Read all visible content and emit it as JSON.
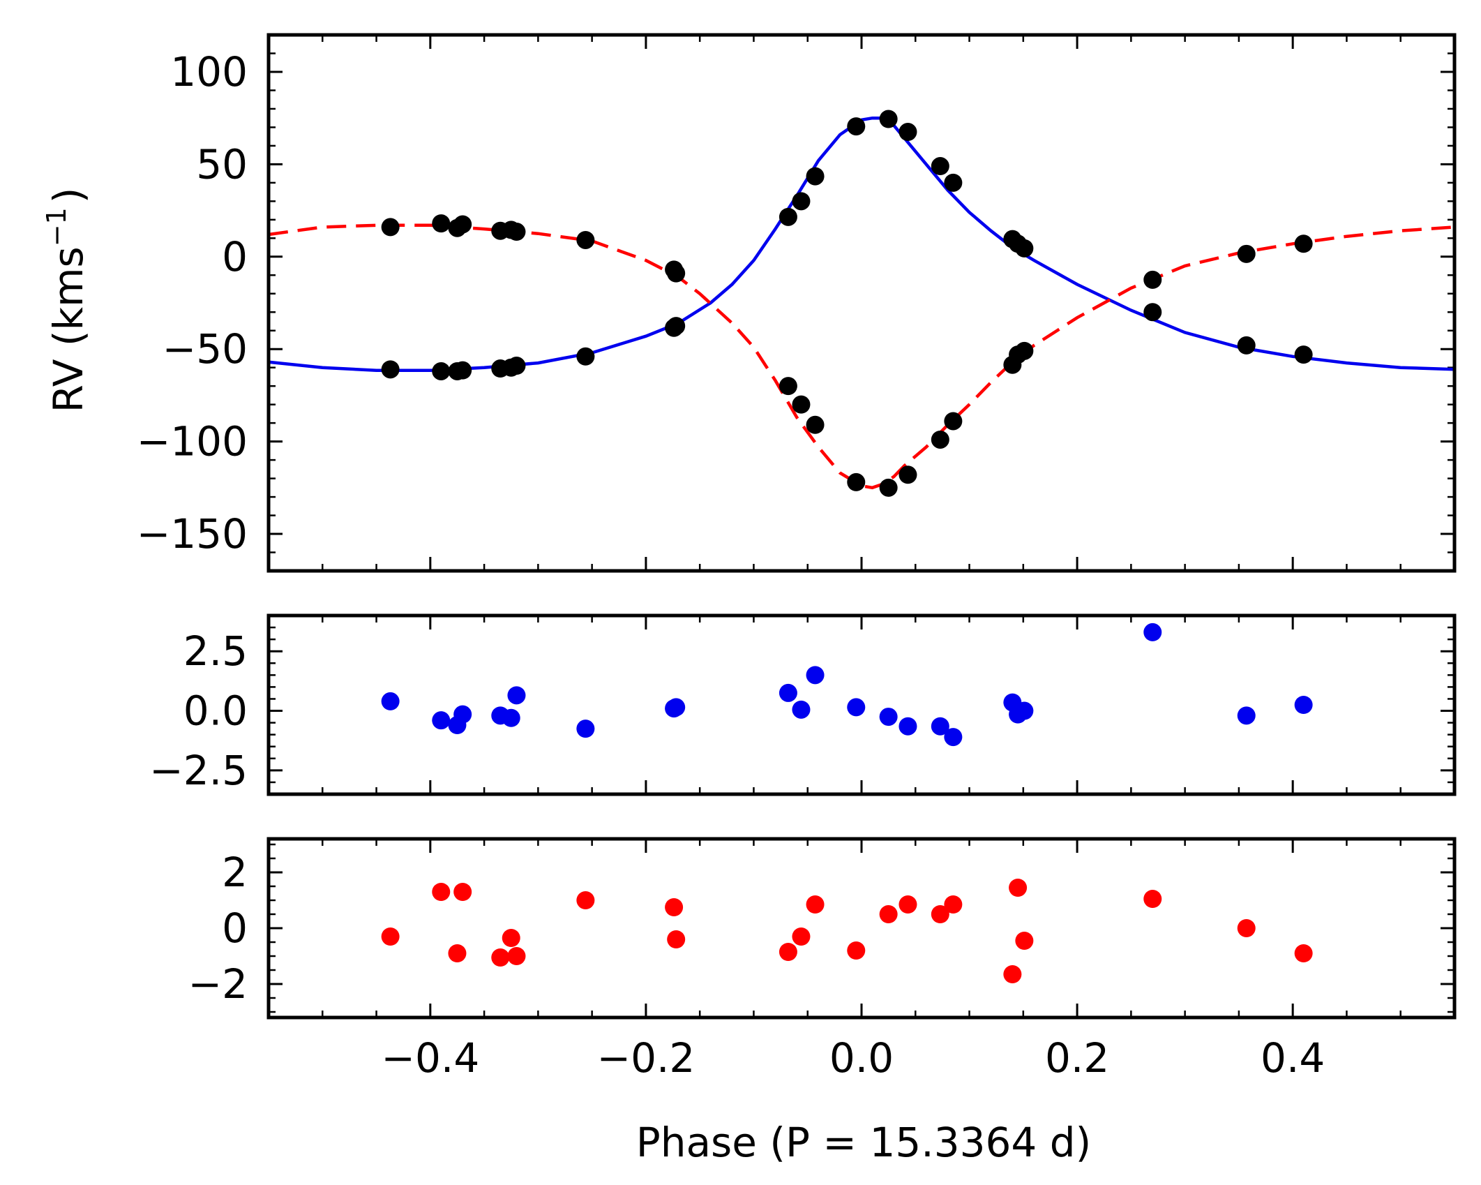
{
  "chart_data": [
    {
      "panel": "rv",
      "type": "line+scatter",
      "ylabel_main": "RV (kms",
      "ylabel_exp": "−1",
      "ylabel_close": ")",
      "xlim": [
        -0.55,
        0.55
      ],
      "ylim": [
        -170,
        120
      ],
      "yticks": [
        100,
        50,
        0,
        -50,
        -100,
        -150
      ],
      "ytick_labels": [
        "100",
        "50",
        "0",
        "−50",
        "−100",
        "−150"
      ],
      "series": [
        {
          "name": "primary model",
          "style": "solid",
          "color": "#0000ee",
          "x": [
            -0.55,
            -0.5,
            -0.45,
            -0.4,
            -0.35,
            -0.3,
            -0.25,
            -0.2,
            -0.17,
            -0.14,
            -0.12,
            -0.1,
            -0.08,
            -0.06,
            -0.04,
            -0.02,
            0.0,
            0.01,
            0.02,
            0.03,
            0.04,
            0.06,
            0.08,
            0.1,
            0.12,
            0.14,
            0.16,
            0.2,
            0.25,
            0.3,
            0.35,
            0.4,
            0.45,
            0.5,
            0.55
          ],
          "y": [
            -57,
            -60,
            -61.5,
            -61.5,
            -60,
            -57.5,
            -52,
            -43,
            -36,
            -25,
            -15,
            -2,
            15,
            33,
            52,
            66,
            74,
            75,
            75,
            71,
            64,
            50,
            36,
            24,
            14,
            5,
            -2,
            -15,
            -29,
            -41,
            -49,
            -54,
            -57.5,
            -60,
            -61
          ]
        },
        {
          "name": "secondary model",
          "style": "dashed",
          "color": "#ff0000",
          "x": [
            -0.55,
            -0.5,
            -0.45,
            -0.4,
            -0.35,
            -0.3,
            -0.25,
            -0.2,
            -0.17,
            -0.15,
            -0.12,
            -0.1,
            -0.08,
            -0.06,
            -0.04,
            -0.02,
            0.0,
            0.01,
            0.02,
            0.03,
            0.04,
            0.06,
            0.08,
            0.1,
            0.12,
            0.14,
            0.16,
            0.2,
            0.25,
            0.3,
            0.35,
            0.4,
            0.45,
            0.5,
            0.55
          ],
          "y": [
            12,
            16,
            17,
            17,
            15,
            12.5,
            8.5,
            -2,
            -11,
            -20,
            -36,
            -49,
            -67,
            -87,
            -103,
            -117,
            -124,
            -125,
            -123,
            -119,
            -113,
            -103,
            -91,
            -80,
            -68,
            -57,
            -48,
            -33,
            -17,
            -5,
            2,
            7,
            11,
            14,
            16
          ]
        },
        {
          "name": "primary RV points",
          "color": "#000000",
          "x": [
            -0.437,
            -0.39,
            -0.375,
            -0.37,
            -0.335,
            -0.325,
            -0.32,
            -0.256,
            -0.174,
            -0.172,
            -0.068,
            -0.056,
            -0.043,
            -0.005,
            0.025,
            0.043,
            0.073,
            0.085,
            0.14,
            0.145,
            0.151,
            0.27,
            0.357,
            0.41
          ],
          "y": [
            -61,
            -62,
            -62,
            -61.5,
            -60.5,
            -60,
            -59,
            -54,
            -38.5,
            -37.5,
            21.5,
            30,
            43.5,
            70.5,
            74.5,
            67.5,
            49,
            40,
            9.5,
            7,
            4.5,
            -30,
            -48,
            -53
          ]
        },
        {
          "name": "secondary RV points",
          "color": "#000000",
          "x": [
            -0.437,
            -0.39,
            -0.375,
            -0.37,
            -0.335,
            -0.325,
            -0.32,
            -0.256,
            -0.174,
            -0.172,
            -0.068,
            -0.056,
            -0.043,
            -0.005,
            0.025,
            0.043,
            0.073,
            0.085,
            0.14,
            0.145,
            0.151,
            0.27,
            0.357,
            0.41
          ],
          "y": [
            16,
            18,
            15.5,
            17.5,
            14,
            14.5,
            13.5,
            9,
            -7,
            -9,
            -70,
            -80,
            -91,
            -122,
            -125,
            -118,
            -99,
            -89,
            -58.5,
            -53,
            -51,
            -12.5,
            1.5,
            7
          ]
        }
      ]
    },
    {
      "panel": "primary residuals",
      "type": "scatter",
      "xlim": [
        -0.55,
        0.55
      ],
      "ylim": [
        -3.5,
        4.0
      ],
      "yticks": [
        2.5,
        0.0,
        -2.5
      ],
      "ytick_labels": [
        "2.5",
        "0.0",
        "−2.5"
      ],
      "color": "#0000ee",
      "x": [
        -0.437,
        -0.39,
        -0.375,
        -0.37,
        -0.335,
        -0.325,
        -0.32,
        -0.256,
        -0.174,
        -0.172,
        -0.068,
        -0.056,
        -0.043,
        -0.005,
        0.025,
        0.043,
        0.073,
        0.085,
        0.14,
        0.145,
        0.151,
        0.27,
        0.357,
        0.41
      ],
      "y": [
        0.4,
        -0.4,
        -0.6,
        -0.15,
        -0.2,
        -0.3,
        0.65,
        -0.75,
        0.1,
        0.15,
        0.75,
        0.05,
        1.5,
        0.15,
        -0.25,
        -0.65,
        -0.65,
        -1.1,
        0.35,
        -0.15,
        0.0,
        3.3,
        -0.2,
        0.25
      ]
    },
    {
      "panel": "secondary residuals",
      "type": "scatter",
      "xlim": [
        -0.55,
        0.55
      ],
      "ylim": [
        -3.2,
        3.2
      ],
      "yticks": [
        2,
        0,
        -2
      ],
      "ytick_labels": [
        "2",
        "0",
        "−2"
      ],
      "color": "#ff0000",
      "xlabel": "Phase (P = 15.3364 d)",
      "xticks": [
        -0.4,
        -0.2,
        0.0,
        0.2,
        0.4
      ],
      "xtick_labels": [
        "−0.4",
        "−0.2",
        "0.0",
        "0.2",
        "0.4"
      ],
      "x": [
        -0.437,
        -0.39,
        -0.375,
        -0.37,
        -0.335,
        -0.325,
        -0.32,
        -0.256,
        -0.174,
        -0.172,
        -0.068,
        -0.056,
        -0.043,
        -0.005,
        0.025,
        0.043,
        0.073,
        0.085,
        0.14,
        0.145,
        0.151,
        0.27,
        0.357,
        0.41
      ],
      "y": [
        -0.3,
        1.3,
        -0.9,
        1.3,
        -1.05,
        -0.35,
        -1.0,
        1.0,
        0.75,
        -0.4,
        -0.85,
        -0.3,
        0.85,
        -0.8,
        0.5,
        0.85,
        0.5,
        0.85,
        -1.65,
        1.45,
        -0.45,
        1.05,
        0.0,
        -0.9
      ]
    }
  ]
}
